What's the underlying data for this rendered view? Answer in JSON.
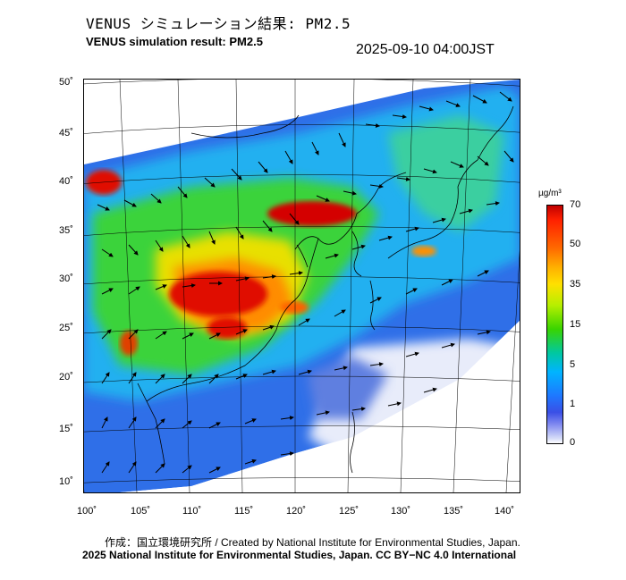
{
  "header": {
    "title_jp": "VENUS シミュレーション結果: PM2.5",
    "title_en": "VENUS simulation result: PM2.5",
    "timestamp": "2025-09-10 04:00JST"
  },
  "map": {
    "lat_labels": [
      "50˚",
      "45˚",
      "40˚",
      "35˚",
      "30˚",
      "25˚",
      "20˚",
      "15˚",
      "10˚"
    ],
    "lon_labels": [
      "100˚",
      "105˚",
      "110˚",
      "115˚",
      "120˚",
      "125˚",
      "130˚",
      "135˚",
      "140˚"
    ],
    "lat_range": [
      10,
      50
    ],
    "lon_range": [
      100,
      140
    ]
  },
  "legend": {
    "unit": "µg/m³",
    "labels": [
      "70",
      "50",
      "35",
      "15",
      "5",
      "1",
      "0"
    ]
  },
  "credits": {
    "line1": "作成：国立環境研究所 / Created by National Institute for Environmental Studies, Japan.",
    "line2": "2025 National Institute for Environmental Studies, Japan. CC BY−NC 4.0 International"
  },
  "colors": {
    "extreme": "#d40000",
    "high": "#ff8000",
    "moderate": "#e8e000",
    "low": "#3ad33a",
    "clean": "#2ba8f0",
    "very_clean": "#2f5fe8"
  }
}
